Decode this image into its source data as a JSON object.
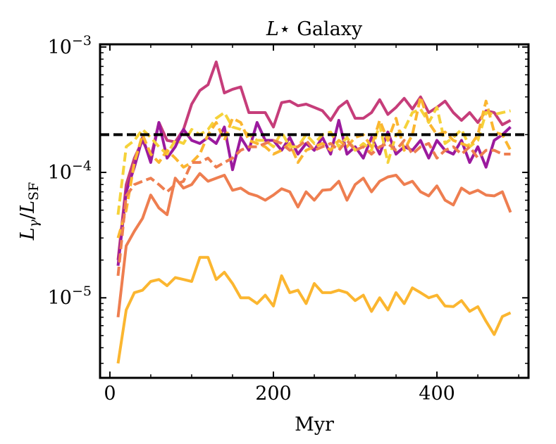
{
  "chart_data": {
    "type": "line",
    "title": "L⋆ Galaxy",
    "xlabel": "Myr",
    "ylabel": "Lγ/LSF",
    "xlim": [
      -12,
      512
    ],
    "ylim": [
      2.3e-06,
      0.00105
    ],
    "yscale": "log",
    "x_ticks": [
      0,
      200,
      400
    ],
    "x_tick_labels": [
      "0",
      "200",
      "400"
    ],
    "y_ticks": [
      1e-05,
      0.0001,
      0.001
    ],
    "y_tick_labels": [
      {
        "base": "10",
        "exp": "−5"
      },
      {
        "base": "10",
        "exp": "−4"
      },
      {
        "base": "10",
        "exp": "−3"
      }
    ],
    "reference_line": {
      "y": 0.0002,
      "style": "dashed",
      "color": "#000000"
    },
    "grid": false,
    "legend": false,
    "x": [
      10,
      20,
      30,
      40,
      50,
      60,
      70,
      80,
      90,
      100,
      110,
      120,
      130,
      140,
      150,
      160,
      170,
      180,
      190,
      200,
      210,
      220,
      230,
      240,
      250,
      260,
      270,
      280,
      290,
      300,
      310,
      320,
      330,
      340,
      350,
      360,
      370,
      380,
      390,
      400,
      410,
      420,
      430,
      440,
      450,
      460,
      470,
      480,
      490
    ],
    "series": [
      {
        "color": "#c63d7a",
        "style": "solid",
        "values": [
          2e-05,
          8e-05,
          0.00013,
          0.00018,
          0.00013,
          0.00025,
          0.00018,
          0.000175,
          0.00022,
          0.00035,
          0.00045,
          0.0005,
          0.00076,
          0.00043,
          0.00046,
          0.00048,
          0.0003,
          0.0003,
          0.0003,
          0.00023,
          0.00036,
          0.00037,
          0.00034,
          0.00035,
          0.00033,
          0.00031,
          0.00026,
          0.00033,
          0.00037,
          0.00027,
          0.00027,
          0.0003,
          0.00038,
          0.00029,
          0.00033,
          0.00039,
          0.00032,
          0.0004,
          0.0003,
          0.00033,
          0.00037,
          0.0003,
          0.00026,
          0.0003,
          0.00025,
          0.00031,
          0.0003,
          0.00024,
          0.00026
        ]
      },
      {
        "color": "#9b1a9e",
        "style": "solid",
        "values": [
          1.8e-05,
          7e-05,
          0.00011,
          0.00019,
          0.00012,
          0.00025,
          0.00013,
          0.00016,
          0.00022,
          0.00018,
          0.00017,
          0.00019,
          0.00017,
          0.00023,
          0.000105,
          0.00019,
          0.00015,
          0.00025,
          0.00018,
          0.00018,
          0.00015,
          0.00019,
          0.00014,
          0.00017,
          0.00015,
          0.00019,
          0.00014,
          0.00026,
          0.00014,
          0.00016,
          0.00013,
          0.00019,
          0.00014,
          0.00021,
          0.00014,
          0.00016,
          0.00015,
          0.00018,
          0.00013,
          0.00018,
          0.00015,
          0.00014,
          0.00018,
          0.00012,
          0.00016,
          0.00011,
          0.00018,
          0.0002,
          0.00023
        ]
      },
      {
        "color": "#ee7e50",
        "style": "solid",
        "values": [
          7e-06,
          2.6e-05,
          3.4e-05,
          4.3e-05,
          6.6e-05,
          5.2e-05,
          4.6e-05,
          9e-05,
          7.5e-05,
          8e-05,
          9.8e-05,
          8.5e-05,
          9e-05,
          9.5e-05,
          7.2e-05,
          7.5e-05,
          6.8e-05,
          6.5e-05,
          6e-05,
          6.6e-05,
          7.4e-05,
          7e-05,
          5.3e-05,
          7e-05,
          6e-05,
          7.2e-05,
          7.3e-05,
          8.5e-05,
          6e-05,
          8e-05,
          9e-05,
          7e-05,
          8.5e-05,
          9.2e-05,
          9.5e-05,
          8e-05,
          8.5e-05,
          7e-05,
          6.5e-05,
          7.8e-05,
          6e-05,
          5.5e-05,
          7.5e-05,
          6.8e-05,
          7.2e-05,
          6.6e-05,
          6.5e-05,
          7e-05,
          4.8e-05
        ]
      },
      {
        "color": "#fbb630",
        "style": "solid",
        "values": [
          3e-06,
          8e-06,
          1.1e-05,
          1.15e-05,
          1.35e-05,
          1.4e-05,
          1.25e-05,
          1.45e-05,
          1.4e-05,
          1.35e-05,
          2.1e-05,
          2.1e-05,
          1.4e-05,
          1.6e-05,
          1.3e-05,
          1e-05,
          1e-05,
          9e-06,
          1.05e-05,
          8.6e-06,
          1.5e-05,
          1.1e-05,
          1.15e-05,
          9e-06,
          1.3e-05,
          1.1e-05,
          1.1e-05,
          1.15e-05,
          1.1e-05,
          9.5e-06,
          1.05e-05,
          7.8e-06,
          1e-05,
          8e-06,
          1.1e-05,
          9e-06,
          1.2e-05,
          1.1e-05,
          1e-05,
          1.05e-05,
          8.6e-06,
          8.5e-06,
          9.5e-06,
          7.8e-06,
          8.5e-06,
          6.5e-06,
          5.1e-06,
          7.1e-06,
          7.6e-06
        ]
      },
      {
        "color": "#f5d23a",
        "style": "dashed",
        "values": [
          4.6e-05,
          0.00016,
          0.00018,
          0.00022,
          0.00019,
          0.00016,
          0.00014,
          0.00018,
          0.00017,
          0.00022,
          0.0002,
          0.00022,
          0.00027,
          0.0003,
          0.00023,
          0.00022,
          0.0002,
          0.00018,
          0.00018,
          0.00016,
          0.00021,
          0.00016,
          0.00016,
          0.0002,
          0.00017,
          0.0002,
          0.00021,
          0.00016,
          0.00019,
          0.00015,
          0.00017,
          0.00015,
          0.00024,
          0.00012,
          0.0002,
          0.00022,
          0.0003,
          0.00032,
          0.00025,
          0.00033,
          0.00017,
          0.00019,
          0.00022,
          0.00016,
          0.00018,
          0.0003,
          0.00029,
          0.0003,
          0.00031
        ]
      },
      {
        "color": "#fbb630",
        "style": "dashed",
        "values": [
          3e-05,
          5e-05,
          0.00012,
          0.0002,
          0.00014,
          0.00012,
          0.00015,
          0.00013,
          0.00011,
          0.00012,
          0.00014,
          0.0002,
          0.00025,
          0.00018,
          0.00027,
          0.00025,
          0.00018,
          0.00017,
          0.00016,
          0.00014,
          0.00015,
          0.00017,
          0.00012,
          0.00015,
          0.00016,
          0.00017,
          0.00015,
          0.00018,
          0.00016,
          0.00019,
          0.0002,
          0.00016,
          0.00026,
          0.00018,
          0.00027,
          0.00015,
          0.0002,
          0.0004,
          0.00025,
          0.0002,
          0.00021,
          0.00018,
          0.00017,
          0.00016,
          0.0002,
          0.00037,
          0.00021,
          0.0002,
          0.00015
        ]
      },
      {
        "color": "#ee7e50",
        "style": "dashed",
        "values": [
          1.5e-05,
          6.5e-05,
          8e-05,
          8.5e-05,
          9e-05,
          8e-05,
          7e-05,
          8e-05,
          8.5e-05,
          0.00012,
          0.00012,
          0.00013,
          0.00011,
          0.00012,
          0.00013,
          0.00015,
          0.00016,
          0.00016,
          0.00017,
          0.00018,
          0.00017,
          0.00015,
          0.00016,
          0.00018,
          0.00015,
          0.00016,
          0.00017,
          0.00015,
          0.00018,
          0.00015,
          0.00016,
          0.00014,
          0.00016,
          0.00017,
          0.00015,
          0.00018,
          0.00014,
          0.00016,
          0.00017,
          0.00013,
          0.00015,
          0.00016,
          0.00014,
          0.00016,
          0.00013,
          0.00015,
          0.00015,
          0.00014,
          0.00014
        ]
      }
    ]
  }
}
